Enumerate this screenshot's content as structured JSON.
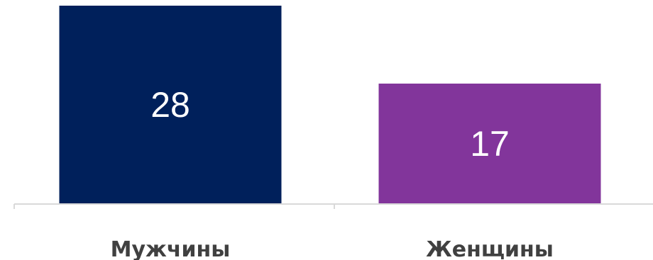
{
  "chart_data": {
    "type": "bar",
    "categories": [
      "Мужчины",
      "Женщины"
    ],
    "values": [
      28,
      17
    ],
    "colors": [
      "#00205b",
      "#82359b"
    ],
    "ylim": [
      0,
      28
    ],
    "data_labels": true,
    "grid": false,
    "legend": "none"
  }
}
